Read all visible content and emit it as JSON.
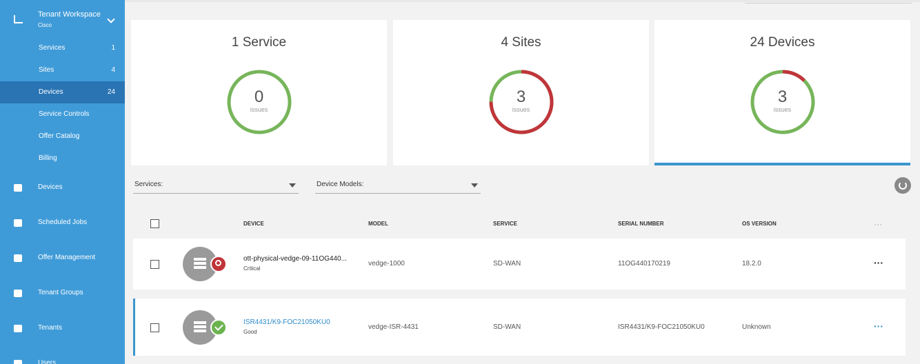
{
  "sidebar": {
    "workspace": {
      "title": "Tenant Workspace",
      "subtitle": "Cisco"
    },
    "subitems": [
      {
        "label": "Services",
        "count": 1
      },
      {
        "label": "Sites",
        "count": 4
      },
      {
        "label": "Devices",
        "count": 24
      },
      {
        "label": "Service Controls"
      },
      {
        "label": "Offer Catalog"
      },
      {
        "label": "Billing"
      }
    ],
    "items": [
      "Devices",
      "Scheduled Jobs",
      "Offer Management",
      "Tenant Groups",
      "Tenants",
      "Users"
    ]
  },
  "cards": [
    {
      "count": 1,
      "label": "Service",
      "issues": 0,
      "issues_label": "issues"
    },
    {
      "count": 4,
      "label": "Sites",
      "issues": 3,
      "issues_label": "issues"
    },
    {
      "count": 24,
      "label": "Devices",
      "issues": 3,
      "issues_label": "issues"
    }
  ],
  "filters": [
    "Services:",
    "Device Models:"
  ],
  "table": {
    "columns": [
      "DEVICE",
      "MODEL",
      "SERVICE",
      "SERIAL NUMBER",
      "OS VERSION"
    ],
    "rows": [
      {
        "device": "ott-physical-vedge-09-11OG440...",
        "status": "Critical",
        "model": "vedge-1000",
        "service": "SD-WAN",
        "serial": "11OG440170219",
        "os": "18.2.0"
      },
      {
        "device": "ISR4431/K9-FOC21050KU0",
        "status": "Good",
        "model": "vedge-ISR-4431",
        "service": "SD-WAN",
        "serial": "ISR4431/K9-FOC21050KU0",
        "os": "Unknown"
      }
    ]
  }
}
